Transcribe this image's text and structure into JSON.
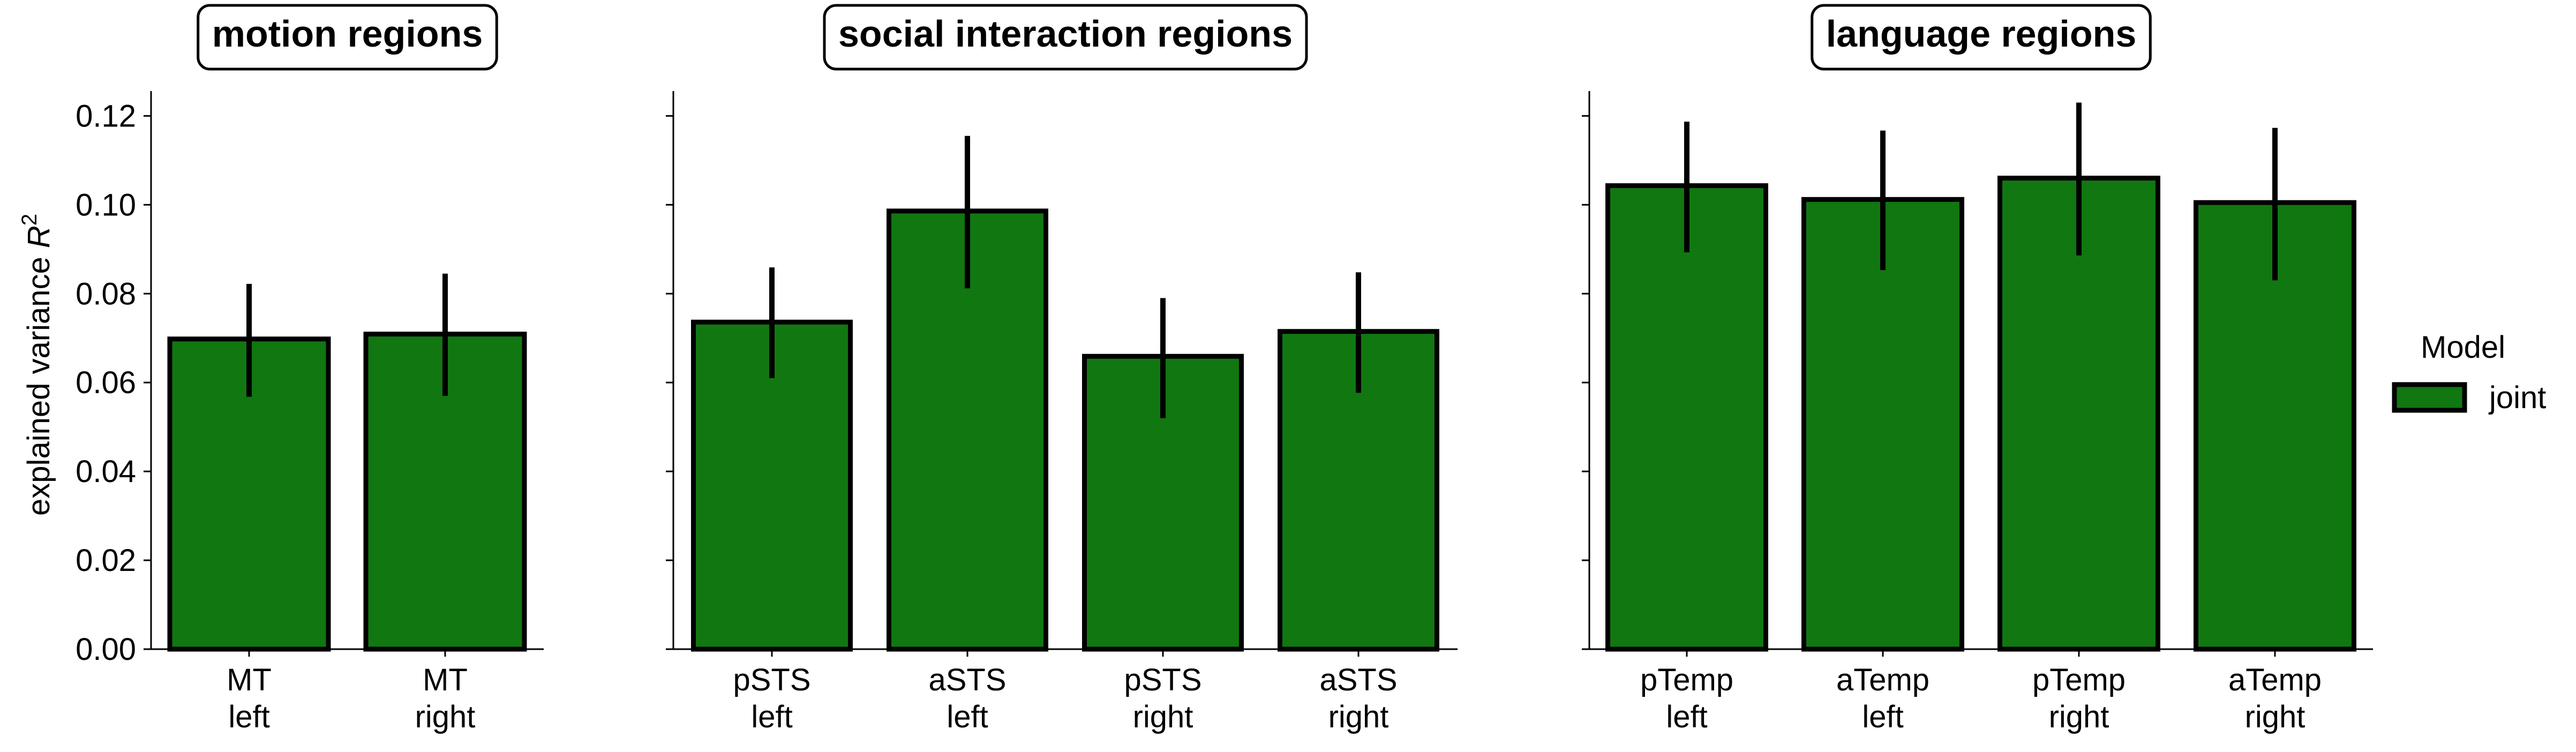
{
  "chart_data": {
    "type": "bar",
    "ylabel": "explained variance",
    "ylabel_math": "R",
    "ylabel_sup": "2",
    "ylim": [
      0,
      0.128
    ],
    "yticks": [
      "0.00",
      "0.02",
      "0.04",
      "0.06",
      "0.08",
      "0.10",
      "0.12"
    ],
    "ytick_values": [
      0,
      0.02,
      0.04,
      0.06,
      0.08,
      0.1,
      0.12
    ],
    "bar_color": "#117711",
    "edge_color": "#000000",
    "legend": {
      "title": "Model",
      "entries": [
        "joint"
      ],
      "placement": "right"
    },
    "panels": [
      {
        "title": "motion regions",
        "categories": [
          [
            "MT",
            "left"
          ],
          [
            "MT",
            "right"
          ]
        ],
        "series": [
          {
            "name": "joint",
            "values": [
              0.0698,
              0.0709
            ],
            "err_low": [
              0.0568,
              0.057
            ],
            "err_high": [
              0.0822,
              0.0845
            ]
          }
        ]
      },
      {
        "title": "social interaction regions",
        "categories": [
          [
            "pSTS",
            "left"
          ],
          [
            "aSTS",
            "left"
          ],
          [
            "pSTS",
            "right"
          ],
          [
            "aSTS",
            "right"
          ]
        ],
        "series": [
          {
            "name": "joint",
            "values": [
              0.0736,
              0.0986,
              0.0659,
              0.0715
            ],
            "err_low": [
              0.061,
              0.0812,
              0.052,
              0.0577
            ],
            "err_high": [
              0.0859,
              0.1155,
              0.079,
              0.0848
            ]
          }
        ]
      },
      {
        "title": "language regions",
        "categories": [
          [
            "pTemp",
            "left"
          ],
          [
            "aTemp",
            "left"
          ],
          [
            "pTemp",
            "right"
          ],
          [
            "aTemp",
            "right"
          ]
        ],
        "series": [
          {
            "name": "joint",
            "values": [
              0.1043,
              0.1012,
              0.106,
              0.1005
            ],
            "err_low": [
              0.0893,
              0.0853,
              0.0886,
              0.083
            ],
            "err_high": [
              0.1187,
              0.1167,
              0.123,
              0.1173
            ]
          }
        ]
      }
    ]
  }
}
